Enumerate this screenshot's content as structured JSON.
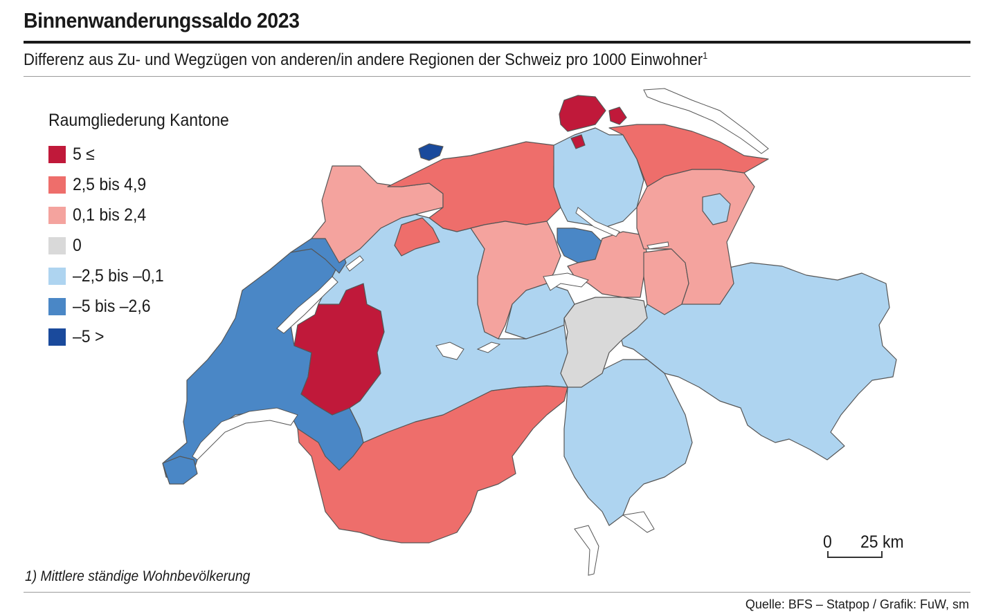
{
  "header": {
    "title": "Binnenwanderungssaldo 2023",
    "subtitle": "Differenz aus Zu- und Wegzügen von anderen/in andere Regionen der Schweiz pro 1000 Einwohner",
    "subtitle_footnote_mark": "1"
  },
  "legend": {
    "title": "Raumgliederung Kantone",
    "items": [
      {
        "label": "5 ≤",
        "color": "#c0193a"
      },
      {
        "label": "2,5 bis 4,9",
        "color": "#ee6e6b"
      },
      {
        "label": "0,1 bis 2,4",
        "color": "#f4a39e"
      },
      {
        "label": "0",
        "color": "#d9d9d9"
      },
      {
        "label": "–2,5 bis –0,1",
        "color": "#aed4f0"
      },
      {
        "label": "–5 bis –2,6",
        "color": "#4a87c6"
      },
      {
        "label": "–5 >",
        "color": "#1a4a9c"
      }
    ]
  },
  "map": {
    "lake_color": "#ffffff",
    "border_color": "#555555"
  },
  "scale": {
    "zero_label": "0",
    "distance_label": "25 km"
  },
  "footnote": "1) Mittlere ständige Wohnbevölkerung",
  "source": "Quelle: BFS – Statpop / Grafik: FuW, sm"
}
